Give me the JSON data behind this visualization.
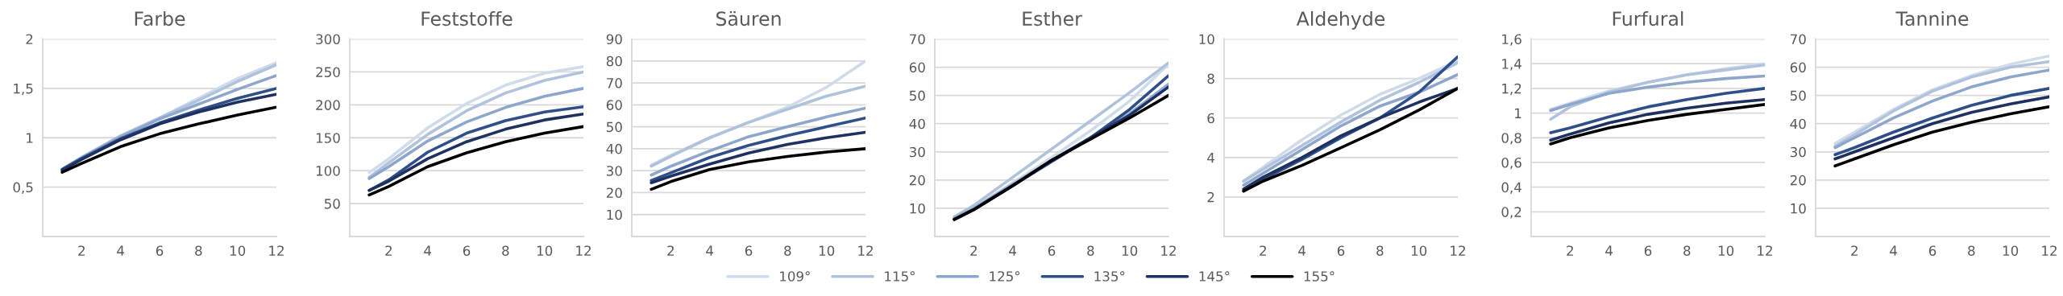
{
  "chart_data": [
    {
      "type": "line",
      "title": "Farbe",
      "x": [
        1,
        2,
        4,
        6,
        8,
        10,
        12
      ],
      "xlim": [
        0,
        12
      ],
      "xticks": [
        2,
        4,
        6,
        8,
        10,
        12
      ],
      "ylim": [
        0,
        2
      ],
      "yticks": [
        {
          "value": 0.5,
          "label": "0,5"
        },
        1,
        {
          "value": 1.5,
          "label": "1,5"
        },
        2
      ],
      "grid": "y",
      "line_style": "solid",
      "series": [
        {
          "color": "#d0dcea",
          "values": [
            0.68,
            0.8,
            1.02,
            1.2,
            1.4,
            1.6,
            1.76
          ]
        },
        {
          "color": "#b0c2dc",
          "values": [
            0.68,
            0.8,
            1.02,
            1.2,
            1.38,
            1.57,
            1.74
          ]
        },
        {
          "color": "#8ea6cc",
          "values": [
            0.68,
            0.8,
            1.01,
            1.19,
            1.34,
            1.49,
            1.63
          ]
        },
        {
          "color": "#2f4f8a",
          "values": [
            0.68,
            0.79,
            0.99,
            1.15,
            1.28,
            1.4,
            1.5
          ]
        },
        {
          "color": "#1e3160",
          "values": [
            0.67,
            0.78,
            0.98,
            1.14,
            1.26,
            1.36,
            1.44
          ]
        },
        {
          "color": "#000000",
          "values": [
            0.65,
            0.74,
            0.91,
            1.04,
            1.14,
            1.23,
            1.31
          ]
        }
      ]
    },
    {
      "type": "line",
      "title": "Feststoffe",
      "x": [
        1,
        2,
        4,
        6,
        8,
        10,
        12
      ],
      "xlim": [
        0,
        12
      ],
      "xticks": [
        2,
        4,
        6,
        8,
        10,
        12
      ],
      "ylim": [
        0,
        300
      ],
      "yticks": [
        50,
        100,
        150,
        200,
        250,
        300
      ],
      "grid": "y",
      "line_style": "solid",
      "series": [
        {
          "color": "#d0dcea",
          "values": [
            97,
            118,
            165,
            202,
            230,
            248,
            258
          ]
        },
        {
          "color": "#b0c2dc",
          "values": [
            90,
            112,
            155,
            191,
            218,
            237,
            250
          ]
        },
        {
          "color": "#8ea6cc",
          "values": [
            88,
            106,
            145,
            174,
            196,
            213,
            225
          ]
        },
        {
          "color": "#2f4f8a",
          "values": [
            70,
            86,
            128,
            157,
            176,
            189,
            197
          ]
        },
        {
          "color": "#1e3160",
          "values": [
            70,
            84,
            118,
            144,
            163,
            177,
            186
          ]
        },
        {
          "color": "#000000",
          "values": [
            63,
            76,
            106,
            127,
            144,
            157,
            167
          ]
        }
      ]
    },
    {
      "type": "line",
      "title": "Säuren",
      "x": [
        1,
        2,
        4,
        6,
        8,
        10,
        12
      ],
      "xlim": [
        0,
        12
      ],
      "xticks": [
        2,
        4,
        6,
        8,
        10,
        12
      ],
      "ylim": [
        0,
        90
      ],
      "yticks": [
        10,
        20,
        30,
        40,
        50,
        60,
        70,
        80,
        90
      ],
      "grid": "y",
      "line_style": "solid",
      "series": [
        {
          "color": "#d0dcea",
          "values": [
            32.5,
            37,
            45,
            52,
            59,
            68,
            80
          ]
        },
        {
          "color": "#b0c2dc",
          "values": [
            32,
            36.5,
            45,
            52,
            58,
            64,
            68.5
          ]
        },
        {
          "color": "#8ea6cc",
          "values": [
            28,
            32,
            39,
            45.5,
            50,
            54.5,
            58.5
          ]
        },
        {
          "color": "#2f4f8a",
          "values": [
            25.5,
            29,
            36,
            41.5,
            46,
            50,
            54
          ]
        },
        {
          "color": "#1e3160",
          "values": [
            24.5,
            27.5,
            33,
            38,
            42,
            45,
            47.5
          ]
        },
        {
          "color": "#000000",
          "values": [
            21.5,
            25,
            30.5,
            34,
            36.5,
            38.5,
            40
          ]
        }
      ]
    },
    {
      "type": "line",
      "title": "Esther",
      "x": [
        1,
        2,
        4,
        6,
        8,
        10,
        12
      ],
      "xlim": [
        0,
        12
      ],
      "xticks": [
        2,
        4,
        6,
        8,
        10,
        12
      ],
      "ylim": [
        0,
        70
      ],
      "yticks": [
        10,
        20,
        30,
        40,
        50,
        60,
        70
      ],
      "grid": "y",
      "line_style": "solid",
      "legend": "bottom",
      "series": [
        {
          "name": "109°",
          "color": "#d0dcea",
          "values": [
            6.5,
            10,
            19,
            28,
            37.5,
            48,
            61
          ]
        },
        {
          "name": "115°",
          "color": "#b0c2dc",
          "values": [
            7,
            11,
            21,
            31,
            41,
            51,
            61.5
          ]
        },
        {
          "name": "125°",
          "color": "#8ea6cc",
          "values": [
            6.5,
            10,
            18.5,
            27,
            35,
            43.5,
            54
          ]
        },
        {
          "name": "135°",
          "color": "#2f4f8a",
          "values": [
            6,
            9.5,
            18,
            26.5,
            35,
            45,
            57
          ]
        },
        {
          "name": "145°",
          "color": "#1e3160",
          "values": [
            6,
            9.5,
            18,
            27,
            35,
            43,
            53
          ]
        },
        {
          "name": "155°",
          "color": "#000000",
          "values": [
            6,
            9.5,
            18,
            27,
            34.5,
            42,
            50
          ]
        }
      ]
    },
    {
      "type": "line",
      "title": "Aldehyde",
      "x": [
        1,
        2,
        4,
        6,
        8,
        10,
        12
      ],
      "xlim": [
        0,
        12
      ],
      "xticks": [
        2,
        4,
        6,
        8,
        10,
        12
      ],
      "ylim": [
        0,
        10
      ],
      "yticks": [
        2,
        4,
        6,
        8,
        10
      ],
      "grid": "y",
      "line_style": "solid",
      "series": [
        {
          "color": "#d0dcea",
          "values": [
            2.8,
            3.5,
            4.9,
            6.15,
            7.2,
            8.0,
            8.9
          ]
        },
        {
          "color": "#b0c2dc",
          "values": [
            2.8,
            3.4,
            4.6,
            5.8,
            6.9,
            7.8,
            8.8
          ]
        },
        {
          "color": "#8ea6cc",
          "values": [
            2.6,
            3.2,
            4.4,
            5.6,
            6.6,
            7.3,
            8.2
          ]
        },
        {
          "color": "#2f4f8a",
          "values": [
            2.3,
            2.9,
            3.9,
            5.0,
            6.0,
            7.3,
            9.1
          ]
        },
        {
          "color": "#1e3160",
          "values": [
            2.4,
            3.0,
            4.0,
            5.1,
            6.0,
            6.8,
            7.5
          ]
        },
        {
          "color": "#000000",
          "values": [
            2.3,
            2.8,
            3.6,
            4.5,
            5.4,
            6.4,
            7.5
          ]
        }
      ]
    },
    {
      "type": "line",
      "title": "Furfural",
      "x": [
        1,
        2,
        4,
        6,
        8,
        10,
        12
      ],
      "xlim": [
        0,
        12
      ],
      "xticks": [
        2,
        4,
        6,
        8,
        10,
        12
      ],
      "ylim": [
        0,
        1.6
      ],
      "yticks": [
        {
          "value": 0.2,
          "label": "0,2"
        },
        {
          "value": 0.4,
          "label": "0,4"
        },
        {
          "value": 0.6,
          "label": "0,6"
        },
        {
          "value": 0.8,
          "label": "0,8"
        },
        1,
        {
          "value": 1.2,
          "label": "1,2"
        },
        {
          "value": 1.4,
          "label": "1,4"
        },
        {
          "value": 1.6,
          "label": "1,6"
        }
      ],
      "grid": "y",
      "line_style": "solid",
      "series": [
        {
          "color": "#d0dcea",
          "values": [
            1.03,
            1.08,
            1.18,
            1.25,
            1.31,
            1.36,
            1.4
          ]
        },
        {
          "color": "#b0c2dc",
          "values": [
            0.95,
            1.05,
            1.17,
            1.25,
            1.31,
            1.35,
            1.39
          ]
        },
        {
          "color": "#8ea6cc",
          "values": [
            1.02,
            1.07,
            1.16,
            1.21,
            1.25,
            1.28,
            1.3
          ]
        },
        {
          "color": "#2f4f8a",
          "values": [
            0.84,
            0.88,
            0.97,
            1.05,
            1.11,
            1.16,
            1.2
          ]
        },
        {
          "color": "#1e3160",
          "values": [
            0.78,
            0.83,
            0.92,
            0.99,
            1.04,
            1.08,
            1.11
          ]
        },
        {
          "color": "#000000",
          "values": [
            0.75,
            0.8,
            0.88,
            0.94,
            0.99,
            1.03,
            1.07
          ]
        }
      ]
    },
    {
      "type": "line",
      "title": "Tannine",
      "x": [
        1,
        2,
        4,
        6,
        8,
        10,
        12
      ],
      "xlim": [
        0,
        12
      ],
      "xticks": [
        2,
        4,
        6,
        8,
        10,
        12
      ],
      "ylim": [
        0,
        70
      ],
      "yticks": [
        10,
        20,
        30,
        40,
        50,
        60,
        70
      ],
      "grid": "y",
      "line_style": "solid",
      "series": [
        {
          "color": "#d0dcea",
          "values": [
            33,
            37,
            45,
            52,
            57,
            61,
            64
          ]
        },
        {
          "color": "#b0c2dc",
          "values": [
            32,
            36,
            44.5,
            51.5,
            56.5,
            60,
            62
          ]
        },
        {
          "color": "#8ea6cc",
          "values": [
            31.5,
            35,
            42,
            48,
            53,
            56.5,
            59
          ]
        },
        {
          "color": "#2f4f8a",
          "values": [
            29,
            31.5,
            37,
            42,
            46.5,
            50,
            52.5
          ]
        },
        {
          "color": "#1e3160",
          "values": [
            27.5,
            30,
            35,
            40,
            44,
            47,
            49.5
          ]
        },
        {
          "color": "#000000",
          "values": [
            25,
            27.5,
            32.5,
            37,
            40.5,
            43.5,
            46
          ]
        }
      ]
    }
  ]
}
